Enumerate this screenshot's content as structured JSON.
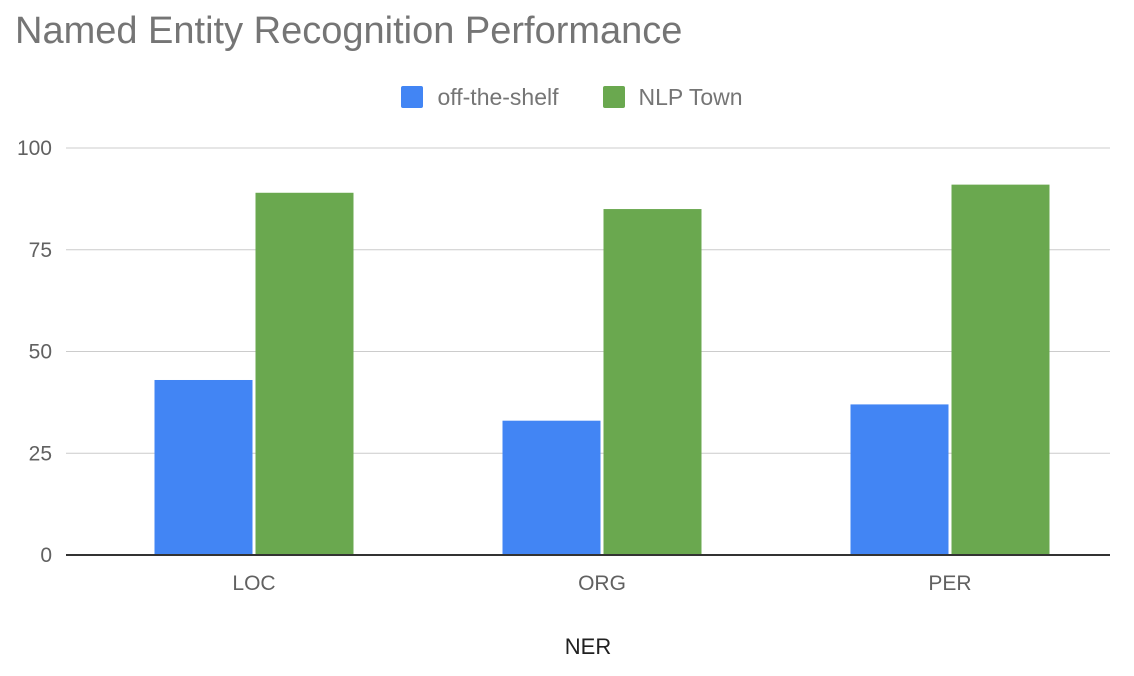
{
  "chart_data": {
    "type": "bar",
    "title": "Named Entity Recognition Performance",
    "xlabel": "NER",
    "ylabel": "",
    "categories": [
      "LOC",
      "ORG",
      "PER"
    ],
    "series": [
      {
        "name": "off-the-shelf",
        "color": "#4285f4",
        "values": [
          43,
          33,
          37
        ]
      },
      {
        "name": "NLP Town",
        "color": "#6aa84f",
        "values": [
          89,
          85,
          91
        ]
      }
    ],
    "ylim": [
      0,
      100
    ],
    "yticks": [
      0,
      25,
      50,
      75,
      100
    ],
    "grid": true,
    "legend_position": "top"
  }
}
